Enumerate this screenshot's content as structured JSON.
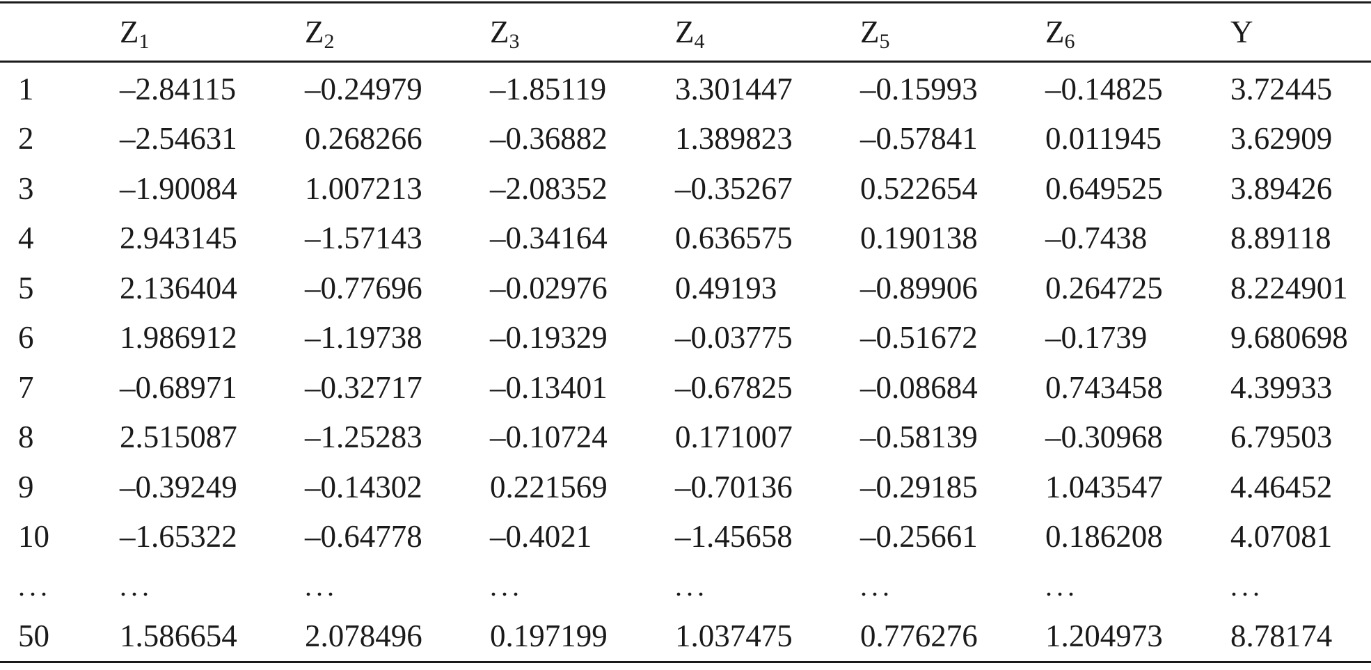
{
  "table": {
    "headers": [
      {
        "base": "",
        "sub": ""
      },
      {
        "base": "Z",
        "sub": "1"
      },
      {
        "base": "Z",
        "sub": "2"
      },
      {
        "base": "Z",
        "sub": "3"
      },
      {
        "base": "Z",
        "sub": "4"
      },
      {
        "base": "Z",
        "sub": "5"
      },
      {
        "base": "Z",
        "sub": "6"
      },
      {
        "base": "Y",
        "sub": ""
      }
    ],
    "rows": [
      [
        "1",
        "–2.84115",
        "–0.24979",
        "–1.85119",
        "3.301447",
        "–0.15993",
        "–0.14825",
        "3.72445"
      ],
      [
        "2",
        "–2.54631",
        "0.268266",
        "–0.36882",
        "1.389823",
        "–0.57841",
        "0.011945",
        "3.62909"
      ],
      [
        "3",
        "–1.90084",
        "1.007213",
        "–2.08352",
        "–0.35267",
        "0.522654",
        "0.649525",
        "3.89426"
      ],
      [
        "4",
        "2.943145",
        "–1.57143",
        "–0.34164",
        "0.636575",
        "0.190138",
        "–0.7438",
        "8.89118"
      ],
      [
        "5",
        "2.136404",
        "–0.77696",
        "–0.02976",
        "0.49193",
        "–0.89906",
        "0.264725",
        "8.224901"
      ],
      [
        "6",
        "1.986912",
        "–1.19738",
        "–0.19329",
        "–0.03775",
        "–0.51672",
        "–0.1739",
        "9.680698"
      ],
      [
        "7",
        "–0.68971",
        "–0.32717",
        "–0.13401",
        "–0.67825",
        "–0.08684",
        "0.743458",
        "4.39933"
      ],
      [
        "8",
        "2.515087",
        "–1.25283",
        "–0.10724",
        "0.171007",
        "–0.58139",
        "–0.30968",
        "6.79503"
      ],
      [
        "9",
        "–0.39249",
        "–0.14302",
        "0.221569",
        "–0.70136",
        "–0.29185",
        "1.043547",
        "4.46452"
      ],
      [
        "10",
        "–1.65322",
        "–0.64778",
        "–0.4021",
        "–1.45658",
        "–0.25661",
        "0.186208",
        "4.07081"
      ],
      [
        "...",
        "...",
        "...",
        "...",
        "...",
        "...",
        "...",
        "..."
      ],
      [
        "50",
        "1.586654",
        "2.078496",
        "0.197199",
        "1.037475",
        "0.776276",
        "1.204973",
        "8.78174"
      ]
    ]
  }
}
